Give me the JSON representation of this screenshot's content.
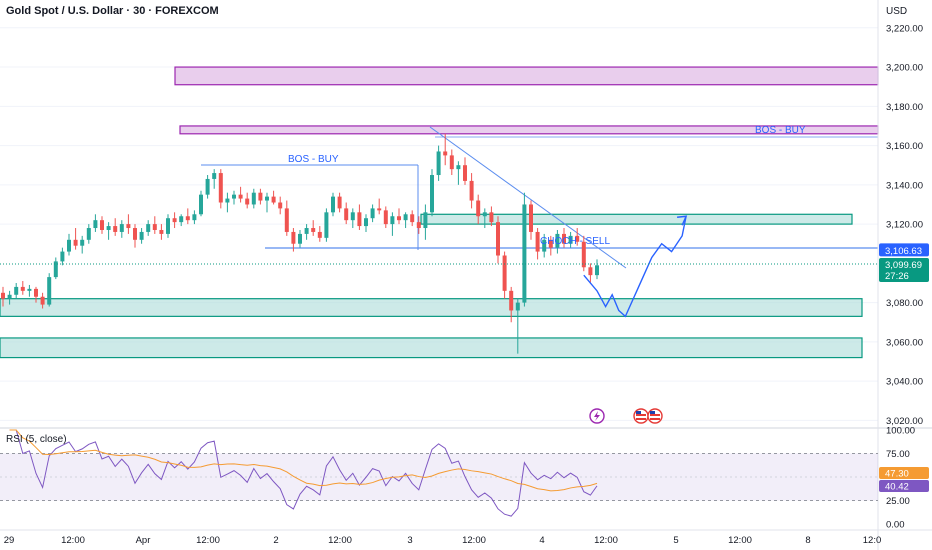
{
  "header": {
    "title": "Gold Spot / U.S. Dollar · 30 · FOREXCOM",
    "currency": "USD"
  },
  "rsi": {
    "label": "RSI (5, close)",
    "ticks": [
      "100.00",
      "75.00",
      "25.00",
      "0.00"
    ],
    "ma_value": "47.30",
    "rsi_value": "40.42",
    "ma_color": "#f59b32",
    "rsi_color": "#7e57c2"
  },
  "chart_data": {
    "type": "candlestick",
    "symbol": "Gold Spot / U.S. Dollar",
    "interval": "30",
    "exchange": "FOREXCOM",
    "y_ticks": [
      "3,220.00",
      "3,200.00",
      "3,180.00",
      "3,160.00",
      "3,140.00",
      "3,120.00",
      "3,080.00",
      "3,060.00",
      "3,040.00",
      "3,020.00"
    ],
    "y_tick_values": [
      3220,
      3200,
      3180,
      3160,
      3140,
      3120,
      3080,
      3060,
      3040,
      3020
    ],
    "ylim": [
      3012,
      3226
    ],
    "x_ticks": [
      "29",
      "12:00",
      "Apr",
      "12:00",
      "2",
      "12:00",
      "3",
      "12:00",
      "4",
      "12:00",
      "5",
      "12:00",
      "8",
      "12:0"
    ],
    "last_price_label": "3,099.69",
    "last_price": 3099.69,
    "countdown_label": "27:26",
    "level_label": "3,106.63",
    "level": 3106.63,
    "annotations": [
      "BOS - BUY",
      "BOS - BUY",
      "CHOCH - SELL"
    ],
    "zones": [
      {
        "type": "supply",
        "low": 3191,
        "high": 3200
      },
      {
        "type": "supply",
        "low": 3166,
        "high": 3170
      },
      {
        "type": "demand",
        "low": 3120,
        "high": 3125
      },
      {
        "type": "demand",
        "low": 3073,
        "high": 3082
      },
      {
        "type": "demand",
        "low": 3052,
        "high": 3062
      }
    ],
    "colors": {
      "up": "#26a69a",
      "down": "#ef5350",
      "zone_supply": "#e1bee7",
      "zone_demand": "#b2dfdb",
      "line": "#2962ff"
    },
    "candles": [
      [
        3085,
        3088,
        3078,
        3082
      ],
      [
        3082,
        3086,
        3079,
        3084
      ],
      [
        3084,
        3090,
        3082,
        3088
      ],
      [
        3088,
        3091,
        3084,
        3086
      ],
      [
        3086,
        3089,
        3083,
        3087
      ],
      [
        3087,
        3088,
        3080,
        3083
      ],
      [
        3083,
        3085,
        3077,
        3079
      ],
      [
        3079,
        3095,
        3078,
        3093
      ],
      [
        3093,
        3103,
        3092,
        3101
      ],
      [
        3101,
        3108,
        3099,
        3106
      ],
      [
        3106,
        3115,
        3104,
        3112
      ],
      [
        3112,
        3118,
        3107,
        3109
      ],
      [
        3109,
        3114,
        3105,
        3112
      ],
      [
        3112,
        3120,
        3110,
        3118
      ],
      [
        3118,
        3125,
        3116,
        3122
      ],
      [
        3122,
        3124,
        3115,
        3117
      ],
      [
        3117,
        3121,
        3112,
        3119
      ],
      [
        3119,
        3123,
        3114,
        3116
      ],
      [
        3116,
        3122,
        3113,
        3120
      ],
      [
        3120,
        3125,
        3115,
        3118
      ],
      [
        3118,
        3120,
        3108,
        3112
      ],
      [
        3112,
        3118,
        3110,
        3116
      ],
      [
        3116,
        3122,
        3114,
        3120
      ],
      [
        3120,
        3124,
        3115,
        3117
      ],
      [
        3117,
        3120,
        3112,
        3115
      ],
      [
        3115,
        3125,
        3113,
        3123
      ],
      [
        3123,
        3126,
        3118,
        3121
      ],
      [
        3121,
        3125,
        3119,
        3124
      ],
      [
        3124,
        3128,
        3120,
        3122
      ],
      [
        3122,
        3127,
        3120,
        3125
      ],
      [
        3125,
        3137,
        3124,
        3135
      ],
      [
        3135,
        3145,
        3133,
        3143
      ],
      [
        3143,
        3148,
        3138,
        3146
      ],
      [
        3146,
        3148,
        3128,
        3131
      ],
      [
        3131,
        3136,
        3126,
        3133
      ],
      [
        3133,
        3137,
        3130,
        3135
      ],
      [
        3135,
        3139,
        3131,
        3133
      ],
      [
        3133,
        3136,
        3128,
        3130
      ],
      [
        3130,
        3138,
        3128,
        3136
      ],
      [
        3136,
        3138,
        3130,
        3132
      ],
      [
        3132,
        3136,
        3126,
        3134
      ],
      [
        3134,
        3137,
        3130,
        3131
      ],
      [
        3131,
        3134,
        3125,
        3128
      ],
      [
        3128,
        3132,
        3114,
        3116
      ],
      [
        3116,
        3118,
        3106,
        3110
      ],
      [
        3110,
        3117,
        3108,
        3115
      ],
      [
        3115,
        3120,
        3112,
        3118
      ],
      [
        3118,
        3122,
        3114,
        3116
      ],
      [
        3116,
        3119,
        3111,
        3113
      ],
      [
        3113,
        3128,
        3111,
        3126
      ],
      [
        3126,
        3136,
        3124,
        3134
      ],
      [
        3134,
        3136,
        3126,
        3128
      ],
      [
        3128,
        3131,
        3120,
        3122
      ],
      [
        3122,
        3128,
        3118,
        3126
      ],
      [
        3126,
        3130,
        3117,
        3119
      ],
      [
        3119,
        3125,
        3116,
        3123
      ],
      [
        3123,
        3130,
        3121,
        3128
      ],
      [
        3128,
        3133,
        3125,
        3127
      ],
      [
        3127,
        3129,
        3118,
        3120
      ],
      [
        3120,
        3126,
        3114,
        3124
      ],
      [
        3124,
        3128,
        3120,
        3122
      ],
      [
        3122,
        3126,
        3118,
        3125
      ],
      [
        3125,
        3127,
        3119,
        3121
      ],
      [
        3121,
        3124,
        3115,
        3118
      ],
      [
        3118,
        3130,
        3112,
        3126
      ],
      [
        3126,
        3148,
        3124,
        3145
      ],
      [
        3145,
        3160,
        3142,
        3157
      ],
      [
        3157,
        3166,
        3150,
        3155
      ],
      [
        3155,
        3158,
        3145,
        3148
      ],
      [
        3148,
        3152,
        3140,
        3150
      ],
      [
        3150,
        3154,
        3140,
        3142
      ],
      [
        3142,
        3146,
        3128,
        3132
      ],
      [
        3132,
        3135,
        3120,
        3124
      ],
      [
        3124,
        3128,
        3118,
        3126
      ],
      [
        3126,
        3129,
        3119,
        3121
      ],
      [
        3121,
        3124,
        3100,
        3104
      ],
      [
        3104,
        3106,
        3082,
        3086
      ],
      [
        3086,
        3088,
        3070,
        3076
      ],
      [
        3076,
        3082,
        3054,
        3080
      ],
      [
        3080,
        3136,
        3078,
        3130
      ],
      [
        3130,
        3132,
        3112,
        3116
      ],
      [
        3116,
        3118,
        3102,
        3106
      ],
      [
        3106,
        3115,
        3103,
        3112
      ],
      [
        3112,
        3114,
        3104,
        3108
      ],
      [
        3108,
        3117,
        3105,
        3115
      ],
      [
        3115,
        3118,
        3108,
        3110
      ],
      [
        3110,
        3116,
        3108,
        3114
      ],
      [
        3114,
        3118,
        3109,
        3111
      ],
      [
        3111,
        3114,
        3096,
        3098
      ],
      [
        3098,
        3100,
        3090,
        3094
      ],
      [
        3094,
        3102,
        3092,
        3099
      ]
    ],
    "projection": [
      [
        88,
        3094
      ],
      [
        90,
        3086
      ],
      [
        91.3,
        3078
      ],
      [
        92.3,
        3084
      ],
      [
        93.3,
        3076
      ],
      [
        94.3,
        3073
      ],
      [
        96.3,
        3088
      ],
      [
        98.3,
        3103
      ],
      [
        99.8,
        3110
      ],
      [
        101.3,
        3106
      ],
      [
        102.9,
        3114
      ],
      [
        103.5,
        3124
      ]
    ],
    "rsi_ylim": [
      0,
      100
    ]
  }
}
